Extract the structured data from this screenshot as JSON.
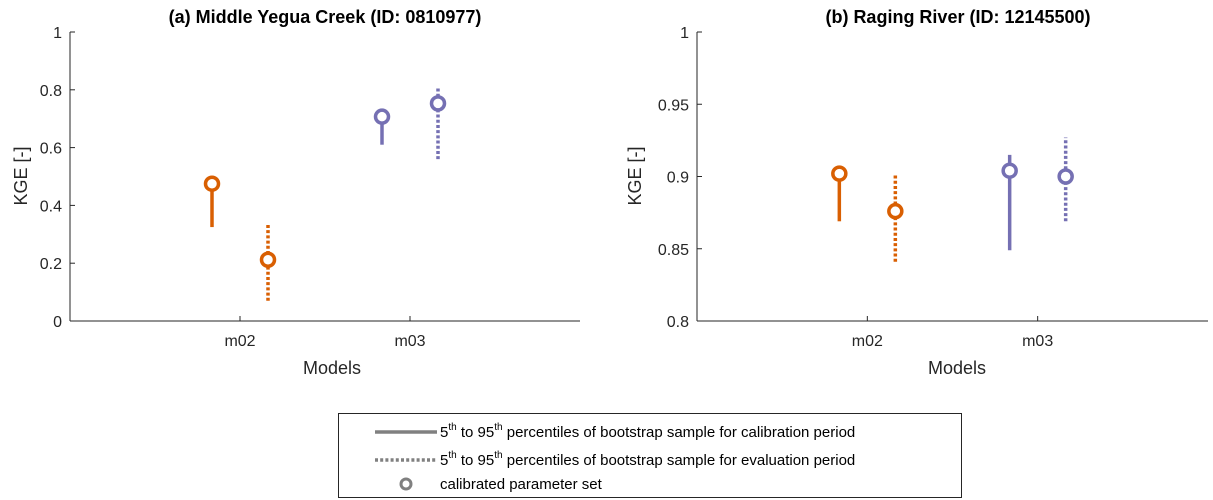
{
  "colors": {
    "m02": "#D95F02",
    "m03": "#7570B3",
    "legend_gray": "#808080",
    "axis": "#262626"
  },
  "chart_data": [
    {
      "type": "scatter",
      "title": "(a) Middle Yegua Creek (ID: 0810977)",
      "xlabel": "Models",
      "ylabel": "KGE [-]",
      "categories": [
        "m02",
        "m03"
      ],
      "ylim": [
        0,
        1
      ],
      "yticks": [
        "0",
        "0.2",
        "0.4",
        "0.6",
        "0.8",
        "1"
      ],
      "ytick_values": [
        0,
        0.2,
        0.4,
        0.6,
        0.8,
        1
      ],
      "grid": false,
      "series": [
        {
          "model": "m02",
          "period": "calibration",
          "value": 0.475,
          "p5": 0.325,
          "p95": 0.475
        },
        {
          "model": "m02",
          "period": "evaluation",
          "value": 0.212,
          "p5": 0.07,
          "p95": 0.335
        },
        {
          "model": "m03",
          "period": "calibration",
          "value": 0.707,
          "p5": 0.61,
          "p95": 0.707
        },
        {
          "model": "m03",
          "period": "evaluation",
          "value": 0.753,
          "p5": 0.56,
          "p95": 0.81
        }
      ]
    },
    {
      "type": "scatter",
      "title": "(b) Raging River (ID: 12145500)",
      "xlabel": "Models",
      "ylabel": "KGE [-]",
      "categories": [
        "m02",
        "m03"
      ],
      "ylim": [
        0.8,
        1
      ],
      "yticks": [
        "0.8",
        "0.85",
        "0.9",
        "0.95",
        "1"
      ],
      "ytick_values": [
        0.8,
        0.85,
        0.9,
        0.95,
        1
      ],
      "grid": false,
      "series": [
        {
          "model": "m02",
          "period": "calibration",
          "value": 0.902,
          "p5": 0.869,
          "p95": 0.902
        },
        {
          "model": "m02",
          "period": "evaluation",
          "value": 0.876,
          "p5": 0.841,
          "p95": 0.901
        },
        {
          "model": "m03",
          "period": "calibration",
          "value": 0.904,
          "p5": 0.849,
          "p95": 0.915
        },
        {
          "model": "m03",
          "period": "evaluation",
          "value": 0.9,
          "p5": 0.869,
          "p95": 0.927
        }
      ]
    }
  ],
  "legend": {
    "placement": "bottom-center",
    "items": [
      {
        "style": "solid",
        "prefix": "5",
        "sup1": "th",
        "mid": " to 95",
        "sup2": "th",
        "suffix": " percentiles of bootstrap sample for calibration period"
      },
      {
        "style": "dotted",
        "prefix": "5",
        "sup1": "th",
        "mid": " to 95",
        "sup2": "th",
        "suffix": " percentiles of bootstrap sample for evaluation period"
      },
      {
        "style": "circle",
        "text": "calibrated parameter set"
      }
    ]
  }
}
